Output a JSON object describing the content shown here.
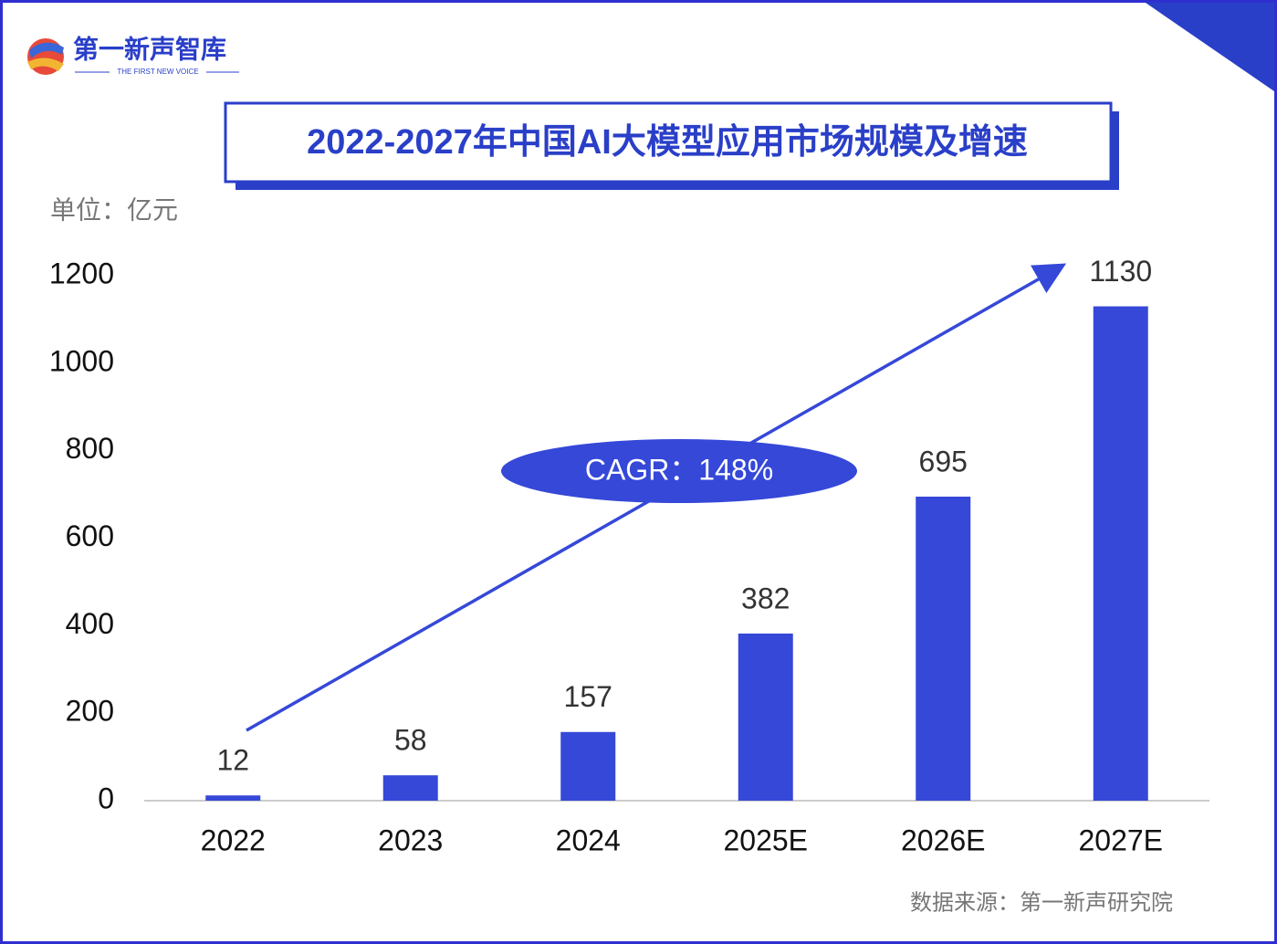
{
  "logo": {
    "name": "第一新声智库",
    "tagline": "THE FIRST NEW VOICE"
  },
  "chart_data": {
    "type": "bar",
    "title": "2022-2027年中国AI大模型应用市场规模及增速",
    "unit_label": "单位：亿元",
    "categories": [
      "2022",
      "2023",
      "2024",
      "2025E",
      "2026E",
      "2027E"
    ],
    "values": [
      12,
      58,
      157,
      382,
      695,
      1130
    ],
    "color": "#3548d8",
    "ylim": [
      0,
      1200
    ],
    "yticks": [
      0,
      200,
      400,
      600,
      800,
      1000,
      1200
    ],
    "annotation": "CAGR：148%",
    "source": "数据来源：第一新声研究院"
  }
}
